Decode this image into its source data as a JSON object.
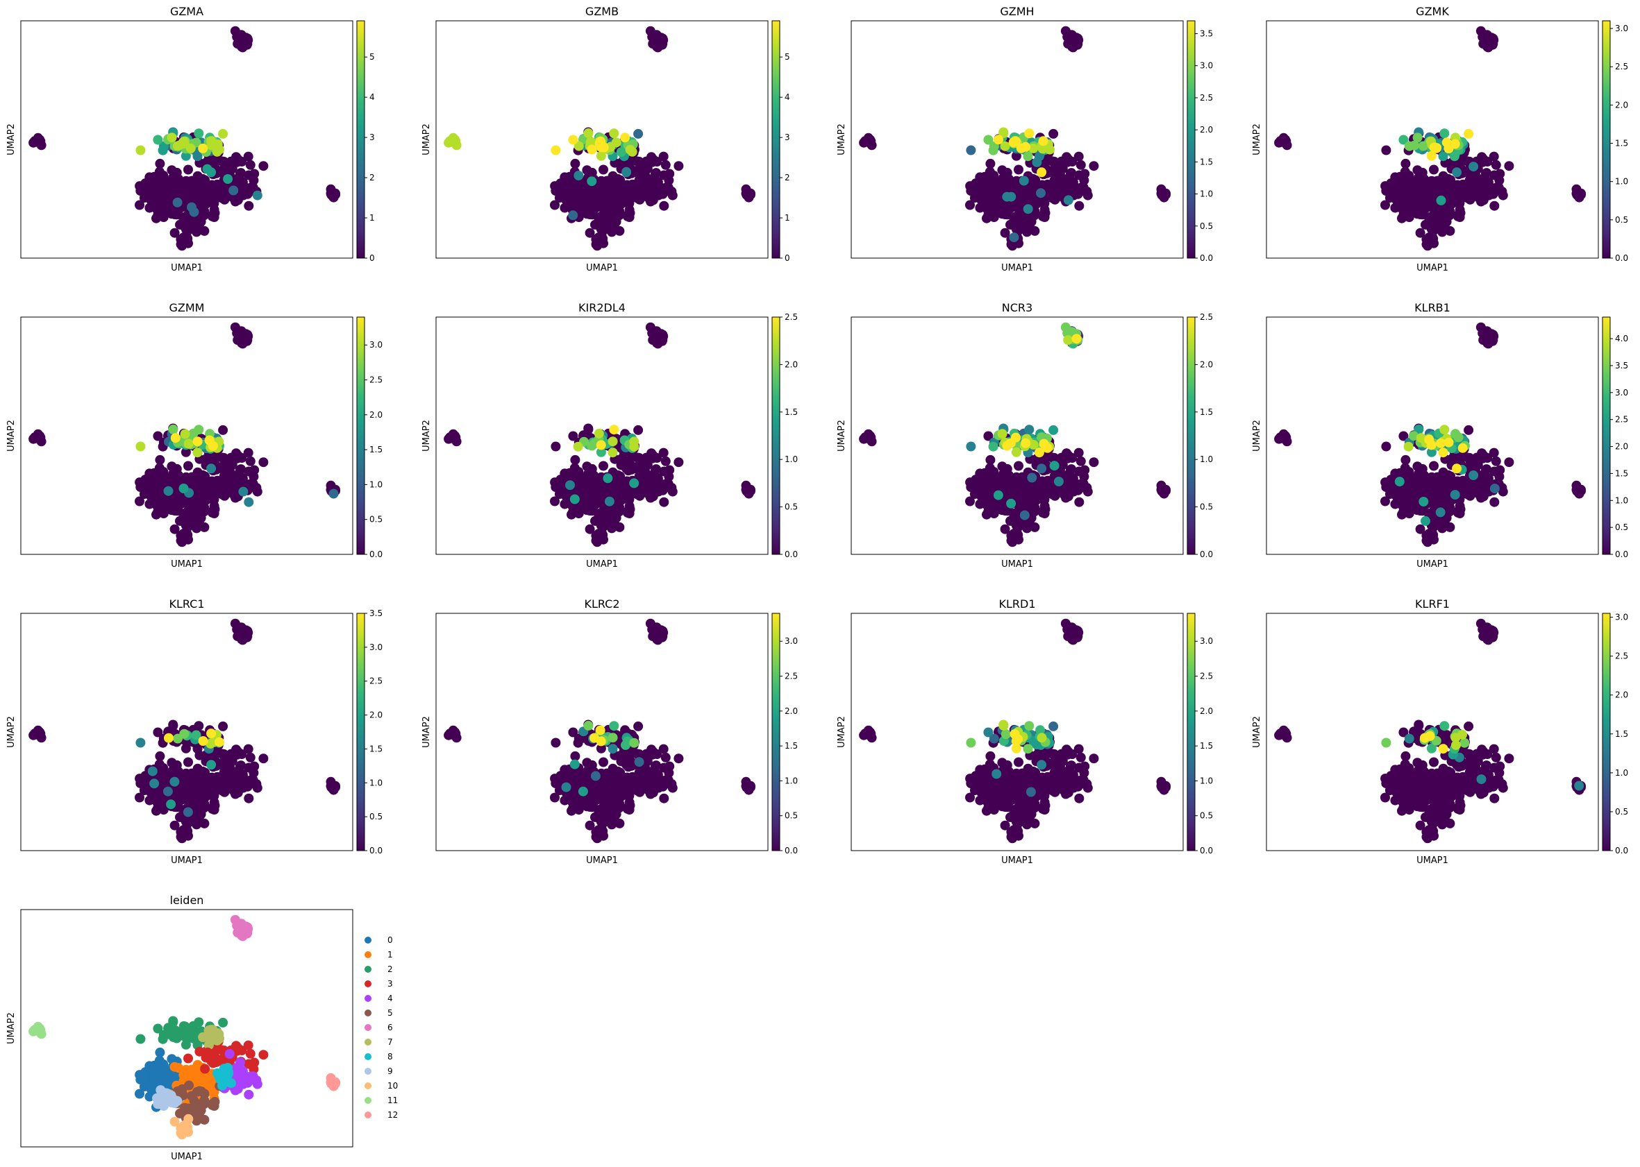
{
  "figure": {
    "x_axis_label": "UMAP1",
    "y_axis_label": "UMAP2"
  },
  "colors": {
    "viridis": [
      "#440154",
      "#482878",
      "#3e4989",
      "#31688e",
      "#26828e",
      "#1f9e89",
      "#35b779",
      "#6ece58",
      "#b5de2b",
      "#fde725"
    ],
    "leiden_palette": [
      "#1f77b4",
      "#ff7f0e",
      "#279e68",
      "#d62728",
      "#aa40fc",
      "#8c564b",
      "#e377c2",
      "#b5bd61",
      "#17becf",
      "#aec7e8",
      "#ffbb78",
      "#98df8a",
      "#ff9896"
    ]
  },
  "chart_data": [
    {
      "type": "scatter",
      "title": "GZMA",
      "xlabel": "UMAP1",
      "ylabel": "UMAP2",
      "colorbar": {
        "min": 0,
        "max": 5.9,
        "ticks": [
          0,
          1,
          2,
          3,
          4,
          5
        ],
        "tick_labels": [
          "0",
          "1",
          "2",
          "3",
          "4",
          "5"
        ]
      },
      "hotspot": "upper-center"
    },
    {
      "type": "scatter",
      "title": "GZMB",
      "xlabel": "UMAP1",
      "ylabel": "UMAP2",
      "colorbar": {
        "min": 0,
        "max": 5.9,
        "ticks": [
          0,
          1,
          2,
          3,
          4,
          5
        ],
        "tick_labels": [
          "0",
          "1",
          "2",
          "3",
          "4",
          "5"
        ]
      },
      "hotspot": "upper-center-and-left-island"
    },
    {
      "type": "scatter",
      "title": "GZMH",
      "xlabel": "UMAP1",
      "ylabel": "UMAP2",
      "colorbar": {
        "min": 0,
        "max": 3.7,
        "ticks": [
          0,
          0.5,
          1,
          1.5,
          2,
          2.5,
          3,
          3.5
        ],
        "tick_labels": [
          "0.0",
          "0.5",
          "1.0",
          "1.5",
          "2.0",
          "2.5",
          "3.0",
          "3.5"
        ]
      },
      "hotspot": "upper-center"
    },
    {
      "type": "scatter",
      "title": "GZMK",
      "xlabel": "UMAP1",
      "ylabel": "UMAP2",
      "colorbar": {
        "min": 0,
        "max": 3.1,
        "ticks": [
          0,
          0.5,
          1,
          1.5,
          2,
          2.5,
          3
        ],
        "tick_labels": [
          "0.0",
          "0.5",
          "1.0",
          "1.5",
          "2.0",
          "2.5",
          "3.0"
        ]
      },
      "hotspot": "upper-center"
    },
    {
      "type": "scatter",
      "title": "GZMM",
      "xlabel": "UMAP1",
      "ylabel": "UMAP2",
      "colorbar": {
        "min": 0,
        "max": 3.4,
        "ticks": [
          0,
          0.5,
          1,
          1.5,
          2,
          2.5,
          3
        ],
        "tick_labels": [
          "0.0",
          "0.5",
          "1.0",
          "1.5",
          "2.0",
          "2.5",
          "3.0"
        ]
      },
      "hotspot": "upper-center"
    },
    {
      "type": "scatter",
      "title": "KIR2DL4",
      "xlabel": "UMAP1",
      "ylabel": "UMAP2",
      "colorbar": {
        "min": 0,
        "max": 2.5,
        "ticks": [
          0,
          0.5,
          1,
          1.5,
          2,
          2.5
        ],
        "tick_labels": [
          "0.0",
          "0.5",
          "1.0",
          "1.5",
          "2.0",
          "2.5"
        ]
      },
      "hotspot": "upper-center-sparse"
    },
    {
      "type": "scatter",
      "title": "NCR3",
      "xlabel": "UMAP1",
      "ylabel": "UMAP2",
      "colorbar": {
        "min": 0,
        "max": 2.5,
        "ticks": [
          0,
          0.5,
          1,
          1.5,
          2,
          2.5
        ],
        "tick_labels": [
          "0.0",
          "0.5",
          "1.0",
          "1.5",
          "2.0",
          "2.5"
        ]
      },
      "hotspot": "top-island-and-upper-center"
    },
    {
      "type": "scatter",
      "title": "KLRB1",
      "xlabel": "UMAP1",
      "ylabel": "UMAP2",
      "colorbar": {
        "min": 0,
        "max": 4.4,
        "ticks": [
          0,
          0.5,
          1,
          1.5,
          2,
          2.5,
          3,
          3.5,
          4
        ],
        "tick_labels": [
          "0.0",
          "0.5",
          "1.0",
          "1.5",
          "2.0",
          "2.5",
          "3.0",
          "3.5",
          "4.0"
        ]
      },
      "hotspot": "upper-center"
    },
    {
      "type": "scatter",
      "title": "KLRC1",
      "xlabel": "UMAP1",
      "ylabel": "UMAP2",
      "colorbar": {
        "min": 0,
        "max": 3.5,
        "ticks": [
          0,
          0.5,
          1,
          1.5,
          2,
          2.5,
          3,
          3.5
        ],
        "tick_labels": [
          "0.0",
          "0.5",
          "1.0",
          "1.5",
          "2.0",
          "2.5",
          "3.0",
          "3.5"
        ]
      },
      "hotspot": "upper-center-sparse"
    },
    {
      "type": "scatter",
      "title": "KLRC2",
      "xlabel": "UMAP1",
      "ylabel": "UMAP2",
      "colorbar": {
        "min": 0,
        "max": 3.4,
        "ticks": [
          0,
          0.5,
          1,
          1.5,
          2,
          2.5,
          3
        ],
        "tick_labels": [
          "0.0",
          "0.5",
          "1.0",
          "1.5",
          "2.0",
          "2.5",
          "3.0"
        ]
      },
      "hotspot": "upper-center-sparse"
    },
    {
      "type": "scatter",
      "title": "KLRD1",
      "xlabel": "UMAP1",
      "ylabel": "UMAP2",
      "colorbar": {
        "min": 0,
        "max": 3.4,
        "ticks": [
          0,
          0.5,
          1,
          1.5,
          2,
          2.5,
          3
        ],
        "tick_labels": [
          "0.0",
          "0.5",
          "1.0",
          "1.5",
          "2.0",
          "2.5",
          "3.0"
        ]
      },
      "hotspot": "upper-center"
    },
    {
      "type": "scatter",
      "title": "KLRF1",
      "xlabel": "UMAP1",
      "ylabel": "UMAP2",
      "colorbar": {
        "min": 0,
        "max": 3.05,
        "ticks": [
          0,
          0.5,
          1,
          1.5,
          2,
          2.5,
          3
        ],
        "tick_labels": [
          "0.0",
          "0.5",
          "1.0",
          "1.5",
          "2.0",
          "2.5",
          "3.0"
        ]
      },
      "hotspot": "upper-center-sparse"
    },
    {
      "type": "scatter",
      "title": "leiden",
      "xlabel": "UMAP1",
      "ylabel": "UMAP2",
      "legend": {
        "placement": "right",
        "entries": [
          "0",
          "1",
          "2",
          "3",
          "4",
          "5",
          "6",
          "7",
          "8",
          "9",
          "10",
          "11",
          "12"
        ]
      }
    }
  ]
}
